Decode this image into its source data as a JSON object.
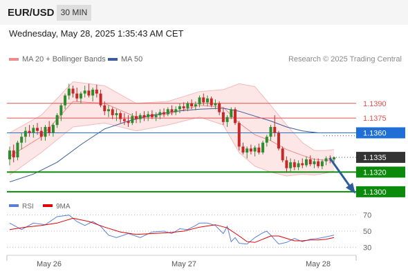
{
  "header": {
    "symbol": "EUR/USD",
    "interval": "30 MIN"
  },
  "timestamp": "Wednesday, May 28, 2025 1:35:43 AM CET",
  "legend": {
    "ma20": {
      "label": "MA 20 + Bollinger Bands",
      "color": "#f08a8a"
    },
    "ma50": {
      "label": "MA 50",
      "color": "#3b5c9c"
    }
  },
  "credit": "Research © 2025 Trading Central",
  "rsi_legend": {
    "rsi": {
      "label": "RSI",
      "color": "#5b7fd6"
    },
    "ma9": {
      "label": "9MA",
      "color": "#e00000"
    }
  },
  "forecast_arrow": {
    "from": 1.1335,
    "to": 1.13,
    "color": "#2f5c9c"
  },
  "chart_data": [
    {
      "type": "candlestick",
      "x_labels": [
        "May 26",
        "May 27",
        "May 28"
      ],
      "ylim": [
        1.1295,
        1.1425
      ],
      "levels": [
        {
          "value": 1.139,
          "label": "1.1390",
          "kind": "resistance",
          "color": "#e05050"
        },
        {
          "value": 1.1375,
          "label": "1.1375",
          "kind": "resistance",
          "color": "#e05050"
        },
        {
          "value": 1.136,
          "label": "1.1360",
          "kind": "pivot",
          "color": "#1f6fd6"
        },
        {
          "value": 1.1335,
          "label": "1.1335",
          "kind": "last",
          "color": "#333333"
        },
        {
          "value": 1.132,
          "label": "1.1320",
          "kind": "support",
          "color": "#0b8a0b"
        },
        {
          "value": 1.13,
          "label": "1.1300",
          "kind": "support",
          "color": "#0b8a0b"
        }
      ],
      "up_color": "#2e8b2e",
      "down_color": "#c62828",
      "candles": [
        [
          1.1333,
          1.1346,
          1.1327,
          1.1342
        ],
        [
          1.1342,
          1.1348,
          1.133,
          1.1335
        ],
        [
          1.1335,
          1.1352,
          1.1332,
          1.135
        ],
        [
          1.135,
          1.136,
          1.1343,
          1.1356
        ],
        [
          1.1356,
          1.1366,
          1.135,
          1.1362
        ],
        [
          1.1362,
          1.1368,
          1.1356,
          1.136
        ],
        [
          1.136,
          1.1368,
          1.1355,
          1.1365
        ],
        [
          1.1365,
          1.137,
          1.1358,
          1.1362
        ],
        [
          1.1362,
          1.1366,
          1.1352,
          1.1356
        ],
        [
          1.1356,
          1.1368,
          1.1352,
          1.1366
        ],
        [
          1.1366,
          1.1372,
          1.1357,
          1.136
        ],
        [
          1.136,
          1.137,
          1.1356,
          1.1368
        ],
        [
          1.1368,
          1.138,
          1.1365,
          1.1378
        ],
        [
          1.1378,
          1.139,
          1.1372,
          1.1388
        ],
        [
          1.1388,
          1.14,
          1.1384,
          1.1398
        ],
        [
          1.1398,
          1.141,
          1.1394,
          1.1405
        ],
        [
          1.1405,
          1.1408,
          1.1396,
          1.14
        ],
        [
          1.14,
          1.1406,
          1.1392,
          1.1395
        ],
        [
          1.1395,
          1.1402,
          1.139,
          1.14
        ],
        [
          1.14,
          1.1408,
          1.1396,
          1.1403
        ],
        [
          1.1403,
          1.141,
          1.1396,
          1.1398
        ],
        [
          1.1398,
          1.1406,
          1.1392,
          1.1404
        ],
        [
          1.1404,
          1.1409,
          1.1396,
          1.14
        ],
        [
          1.14,
          1.1404,
          1.1386,
          1.1388
        ],
        [
          1.1388,
          1.1392,
          1.1378,
          1.1382
        ],
        [
          1.1382,
          1.1388,
          1.1376,
          1.1384
        ],
        [
          1.1384,
          1.1386,
          1.1374,
          1.1378
        ],
        [
          1.1378,
          1.1384,
          1.1372,
          1.138
        ],
        [
          1.138,
          1.1382,
          1.137,
          1.1374
        ],
        [
          1.1374,
          1.138,
          1.1368,
          1.1372
        ],
        [
          1.1372,
          1.1378,
          1.1366,
          1.137
        ],
        [
          1.137,
          1.138,
          1.1368,
          1.1377
        ],
        [
          1.1377,
          1.1382,
          1.137,
          1.1374
        ],
        [
          1.1374,
          1.138,
          1.137,
          1.1378
        ],
        [
          1.1378,
          1.1382,
          1.1372,
          1.1376
        ],
        [
          1.1376,
          1.1382,
          1.1372,
          1.1379
        ],
        [
          1.1379,
          1.1383,
          1.1374,
          1.1376
        ],
        [
          1.1376,
          1.1381,
          1.1372,
          1.1378
        ],
        [
          1.1378,
          1.1384,
          1.1374,
          1.1381
        ],
        [
          1.1381,
          1.1385,
          1.1376,
          1.1379
        ],
        [
          1.1379,
          1.1386,
          1.1377,
          1.1384
        ],
        [
          1.1384,
          1.1388,
          1.1378,
          1.1381
        ],
        [
          1.1381,
          1.1387,
          1.1378,
          1.1384
        ],
        [
          1.1384,
          1.139,
          1.138,
          1.1387
        ],
        [
          1.1387,
          1.1391,
          1.1382,
          1.1385
        ],
        [
          1.1385,
          1.1392,
          1.1382,
          1.139
        ],
        [
          1.139,
          1.1394,
          1.1384,
          1.1387
        ],
        [
          1.1387,
          1.1392,
          1.1383,
          1.1389
        ],
        [
          1.1389,
          1.1398,
          1.1386,
          1.1396
        ],
        [
          1.1396,
          1.14,
          1.1388,
          1.1391
        ],
        [
          1.1391,
          1.1398,
          1.1387,
          1.1395
        ],
        [
          1.1395,
          1.1397,
          1.1386,
          1.1388
        ],
        [
          1.1388,
          1.1394,
          1.1384,
          1.139
        ],
        [
          1.139,
          1.1392,
          1.1378,
          1.1381
        ],
        [
          1.1381,
          1.1385,
          1.1368,
          1.1371
        ],
        [
          1.1371,
          1.1378,
          1.1366,
          1.1376
        ],
        [
          1.1376,
          1.1386,
          1.1374,
          1.1384
        ],
        [
          1.1384,
          1.1386,
          1.1368,
          1.137
        ],
        [
          1.137,
          1.1372,
          1.1342,
          1.1346
        ],
        [
          1.1346,
          1.135,
          1.1338,
          1.134
        ],
        [
          1.134,
          1.1346,
          1.1334,
          1.1344
        ],
        [
          1.1344,
          1.1348,
          1.1338,
          1.1341
        ],
        [
          1.1341,
          1.1347,
          1.1336,
          1.1345
        ],
        [
          1.1345,
          1.1349,
          1.1338,
          1.134
        ],
        [
          1.134,
          1.1352,
          1.1338,
          1.135
        ],
        [
          1.135,
          1.1358,
          1.1346,
          1.1356
        ],
        [
          1.1356,
          1.1368,
          1.1352,
          1.1366
        ],
        [
          1.1366,
          1.1378,
          1.1356,
          1.136
        ],
        [
          1.136,
          1.1362,
          1.1342,
          1.1344
        ],
        [
          1.1344,
          1.1346,
          1.133,
          1.1332
        ],
        [
          1.1332,
          1.1336,
          1.132,
          1.1324
        ],
        [
          1.1324,
          1.1334,
          1.132,
          1.133
        ],
        [
          1.133,
          1.1333,
          1.1322,
          1.1325
        ],
        [
          1.1325,
          1.1332,
          1.1322,
          1.1329
        ],
        [
          1.1329,
          1.1334,
          1.1324,
          1.1327
        ],
        [
          1.1327,
          1.1336,
          1.1325,
          1.1333
        ],
        [
          1.1333,
          1.1337,
          1.1326,
          1.1328
        ],
        [
          1.1328,
          1.1334,
          1.1324,
          1.1331
        ],
        [
          1.1331,
          1.1334,
          1.1324,
          1.1326
        ],
        [
          1.1326,
          1.1333,
          1.1323,
          1.1331
        ],
        [
          1.1331,
          1.1336,
          1.1327,
          1.1334
        ],
        [
          1.1334,
          1.1337,
          1.1329,
          1.1333
        ],
        [
          1.1333,
          1.1336,
          1.133,
          1.1335
        ]
      ],
      "bollinger": {
        "upper": [
          [
            0,
            1.136
          ],
          [
            8,
            1.1378
          ],
          [
            16,
            1.1412
          ],
          [
            24,
            1.1408
          ],
          [
            32,
            1.139
          ],
          [
            40,
            1.1392
          ],
          [
            48,
            1.1402
          ],
          [
            54,
            1.1404
          ],
          [
            58,
            1.141
          ],
          [
            62,
            1.1407
          ],
          [
            66,
            1.1388
          ],
          [
            70,
            1.1368
          ],
          [
            74,
            1.135
          ],
          [
            77,
            1.1342
          ],
          [
            80,
            1.1342
          ],
          [
            82,
            1.1343
          ]
        ],
        "middle": [
          [
            0,
            1.1336
          ],
          [
            8,
            1.1356
          ],
          [
            16,
            1.1392
          ],
          [
            24,
            1.139
          ],
          [
            32,
            1.1376
          ],
          [
            40,
            1.1379
          ],
          [
            48,
            1.1388
          ],
          [
            54,
            1.1386
          ],
          [
            58,
            1.137
          ],
          [
            62,
            1.1358
          ],
          [
            66,
            1.1352
          ],
          [
            70,
            1.1343
          ],
          [
            74,
            1.1337
          ],
          [
            77,
            1.1333
          ],
          [
            80,
            1.1332
          ],
          [
            82,
            1.1332
          ]
        ],
        "lower": [
          [
            0,
            1.1317
          ],
          [
            8,
            1.134
          ],
          [
            16,
            1.1366
          ],
          [
            24,
            1.137
          ],
          [
            32,
            1.1362
          ],
          [
            40,
            1.1368
          ],
          [
            48,
            1.1376
          ],
          [
            54,
            1.1368
          ],
          [
            58,
            1.134
          ],
          [
            62,
            1.1326
          ],
          [
            66,
            1.132
          ],
          [
            70,
            1.1316
          ],
          [
            74,
            1.1318
          ],
          [
            77,
            1.1317
          ],
          [
            80,
            1.1319
          ],
          [
            82,
            1.1321
          ]
        ]
      },
      "ma50": [
        [
          0,
          1.131
        ],
        [
          6,
          1.1318
        ],
        [
          12,
          1.133
        ],
        [
          18,
          1.1348
        ],
        [
          24,
          1.1364
        ],
        [
          30,
          1.1372
        ],
        [
          36,
          1.1378
        ],
        [
          42,
          1.1382
        ],
        [
          48,
          1.1384
        ],
        [
          54,
          1.1385
        ],
        [
          58,
          1.1382
        ],
        [
          62,
          1.1377
        ],
        [
          66,
          1.1372
        ],
        [
          70,
          1.1366
        ],
        [
          74,
          1.1362
        ],
        [
          78,
          1.136
        ]
      ]
    },
    {
      "type": "line",
      "title": "RSI",
      "ylim": [
        20,
        80
      ],
      "y_ticks": [
        70,
        50,
        30
      ],
      "series": [
        {
          "name": "RSI",
          "color": "#5b7fd6",
          "points": [
            [
              0,
              60
            ],
            [
              3,
              52
            ],
            [
              6,
              60
            ],
            [
              9,
              58
            ],
            [
              12,
              68
            ],
            [
              15,
              70
            ],
            [
              17,
              62
            ],
            [
              19,
              57
            ],
            [
              21,
              62
            ],
            [
              23,
              56
            ],
            [
              25,
              45
            ],
            [
              27,
              42
            ],
            [
              30,
              47
            ],
            [
              33,
              42
            ],
            [
              36,
              49
            ],
            [
              39,
              50
            ],
            [
              41,
              47
            ],
            [
              43,
              53
            ],
            [
              45,
              52
            ],
            [
              47,
              57
            ],
            [
              48,
              60
            ],
            [
              50,
              60
            ],
            [
              52,
              57
            ],
            [
              54,
              47
            ],
            [
              55,
              56
            ],
            [
              56,
              37
            ],
            [
              57,
              42
            ],
            [
              58,
              35
            ],
            [
              60,
              34
            ],
            [
              62,
              42
            ],
            [
              64,
              48
            ],
            [
              65,
              50
            ],
            [
              66,
              45
            ],
            [
              68,
              34
            ],
            [
              70,
              36
            ],
            [
              72,
              41
            ],
            [
              74,
              37
            ],
            [
              76,
              40
            ],
            [
              78,
              41
            ],
            [
              80,
              43
            ],
            [
              82,
              45
            ]
          ]
        },
        {
          "name": "9MA",
          "color": "#e00000",
          "points": [
            [
              0,
              52
            ],
            [
              4,
              55
            ],
            [
              8,
              57
            ],
            [
              12,
              60
            ],
            [
              16,
              66
            ],
            [
              20,
              62
            ],
            [
              24,
              55
            ],
            [
              28,
              49
            ],
            [
              32,
              46
            ],
            [
              36,
              47
            ],
            [
              40,
              48
            ],
            [
              44,
              50
            ],
            [
              48,
              55
            ],
            [
              52,
              58
            ],
            [
              55,
              54
            ],
            [
              58,
              44
            ],
            [
              60,
              37
            ],
            [
              62,
              36
            ],
            [
              64,
              40
            ],
            [
              66,
              44
            ],
            [
              68,
              44
            ],
            [
              70,
              41
            ],
            [
              72,
              38
            ],
            [
              74,
              38
            ],
            [
              76,
              39
            ],
            [
              78,
              39
            ],
            [
              80,
              40
            ],
            [
              82,
              42
            ]
          ]
        }
      ]
    }
  ]
}
